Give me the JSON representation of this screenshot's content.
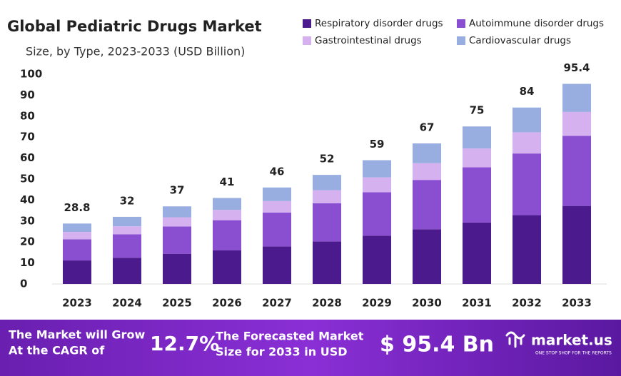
{
  "chart_data": {
    "type": "stacked-bar",
    "title": "Global Pediatric Drugs Market",
    "subtitle": "Size, by Type, 2023-2033 (USD Billion)",
    "categories": [
      "2023",
      "2024",
      "2025",
      "2026",
      "2027",
      "2028",
      "2029",
      "2030",
      "2031",
      "2032",
      "2033"
    ],
    "series": [
      {
        "name": "Respiratory disorder drugs",
        "color": "#4b1a8c",
        "values": [
          11.2,
          12.5,
          14.4,
          16.0,
          17.9,
          20.3,
          23.0,
          26.1,
          29.3,
          32.8,
          37.2
        ]
      },
      {
        "name": "Autoimmune disorder drugs",
        "color": "#8a4fd1",
        "values": [
          10.1,
          11.2,
          13.0,
          14.4,
          16.1,
          18.2,
          20.7,
          23.5,
          26.3,
          29.4,
          33.4
        ]
      },
      {
        "name": "Gastrointestinal drugs",
        "color": "#d6b1f0",
        "values": [
          3.5,
          3.8,
          4.4,
          4.9,
          5.5,
          6.2,
          7.1,
          8.0,
          9.0,
          10.1,
          11.4
        ]
      },
      {
        "name": "Cardiovascular drugs",
        "color": "#98aee0",
        "values": [
          4.0,
          4.5,
          5.2,
          5.7,
          6.5,
          7.3,
          8.2,
          9.4,
          10.5,
          11.8,
          13.4
        ]
      }
    ],
    "totals": [
      28.8,
      32,
      37,
      41,
      46,
      52,
      59,
      67,
      75,
      84,
      95.4
    ],
    "ylim": [
      0,
      100
    ],
    "yticks": [
      0,
      10,
      20,
      30,
      40,
      50,
      60,
      70,
      80,
      90,
      100
    ],
    "grid": false
  },
  "footer": {
    "grow_text": [
      "The Market will Grow",
      "At the CAGR of"
    ],
    "cagr": "12.7%",
    "forecast_text": [
      "The Forecasted Market",
      "Size for 2033 in USD"
    ],
    "forecast_value": "$ 95.4 Bn",
    "brand": "market.us",
    "tagline": "ONE STOP SHOP FOR THE REPORTS"
  }
}
